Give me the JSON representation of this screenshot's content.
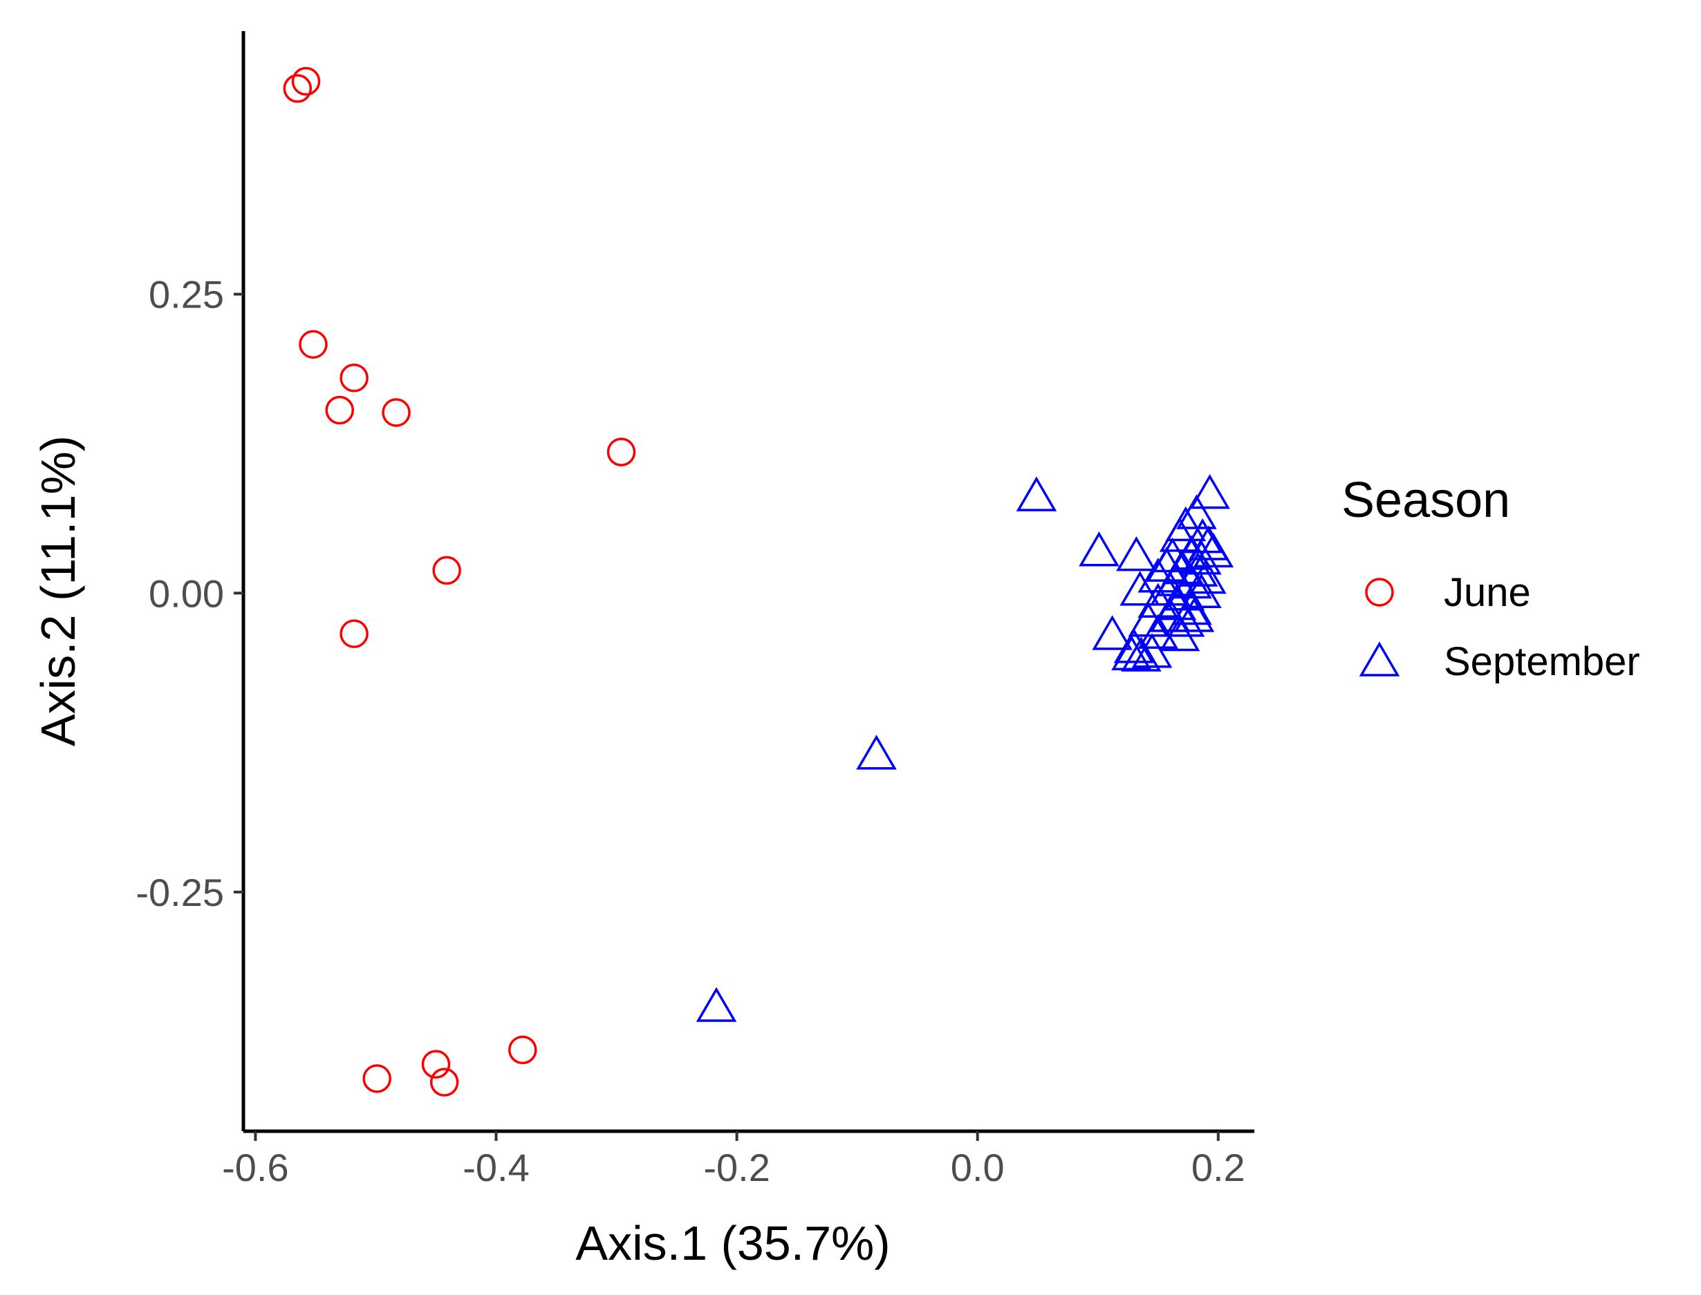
{
  "chart_data": {
    "type": "scatter",
    "xlabel": "Axis.1  (35.7%)",
    "ylabel": "Axis.2  (11.1%)",
    "xlim": [
      -0.61,
      0.23
    ],
    "ylim": [
      -0.45,
      0.47
    ],
    "x_ticks": [
      {
        "value": -0.6,
        "label": "-0.6"
      },
      {
        "value": -0.4,
        "label": "-0.4"
      },
      {
        "value": -0.2,
        "label": "-0.2"
      },
      {
        "value": 0.0,
        "label": "0.0"
      },
      {
        "value": 0.2,
        "label": "0.2"
      }
    ],
    "y_ticks": [
      {
        "value": 0.25,
        "label": "0.25"
      },
      {
        "value": 0.0,
        "label": "0.00"
      },
      {
        "value": -0.25,
        "label": "-0.25"
      }
    ],
    "grid": false,
    "legend": {
      "title": "Season",
      "position": "right"
    },
    "series": [
      {
        "name": "June",
        "shape": "circle",
        "color": "#ff0000",
        "points": [
          [
            -0.565,
            0.422
          ],
          [
            -0.558,
            0.428
          ],
          [
            -0.552,
            0.208
          ],
          [
            -0.518,
            0.18
          ],
          [
            -0.53,
            0.153
          ],
          [
            -0.483,
            0.151
          ],
          [
            -0.296,
            0.118
          ],
          [
            -0.441,
            0.019
          ],
          [
            -0.518,
            -0.034
          ],
          [
            -0.378,
            -0.382
          ],
          [
            -0.45,
            -0.394
          ],
          [
            -0.499,
            -0.406
          ],
          [
            -0.443,
            -0.409
          ]
        ]
      },
      {
        "name": "September",
        "shape": "triangle",
        "color": "#0000ff",
        "points": [
          [
            0.049,
            0.081
          ],
          [
            0.193,
            0.083
          ],
          [
            0.182,
            0.066
          ],
          [
            0.173,
            0.056
          ],
          [
            0.168,
            0.047
          ],
          [
            0.187,
            0.046
          ],
          [
            0.192,
            0.04
          ],
          [
            0.196,
            0.034
          ],
          [
            0.101,
            0.035
          ],
          [
            0.132,
            0.031
          ],
          [
            0.162,
            0.03
          ],
          [
            0.178,
            0.032
          ],
          [
            0.186,
            0.028
          ],
          [
            0.157,
            0.022
          ],
          [
            0.17,
            0.02
          ],
          [
            0.183,
            0.018
          ],
          [
            0.15,
            0.013
          ],
          [
            0.165,
            0.01
          ],
          [
            0.178,
            0.008
          ],
          [
            0.19,
            0.012
          ],
          [
            0.135,
            0.002
          ],
          [
            0.16,
            0.002
          ],
          [
            0.172,
            -0.002
          ],
          [
            0.186,
            0.0
          ],
          [
            0.15,
            -0.008
          ],
          [
            0.165,
            -0.01
          ],
          [
            0.178,
            -0.014
          ],
          [
            0.142,
            -0.024
          ],
          [
            0.16,
            -0.02
          ],
          [
            0.172,
            -0.024
          ],
          [
            0.18,
            -0.02
          ],
          [
            0.112,
            -0.035
          ],
          [
            0.15,
            -0.034
          ],
          [
            0.168,
            -0.036
          ],
          [
            0.13,
            -0.046
          ],
          [
            0.145,
            -0.05
          ],
          [
            0.128,
            -0.052
          ],
          [
            0.136,
            -0.053
          ],
          [
            -0.084,
            -0.135
          ],
          [
            -0.217,
            -0.346
          ]
        ]
      }
    ]
  }
}
